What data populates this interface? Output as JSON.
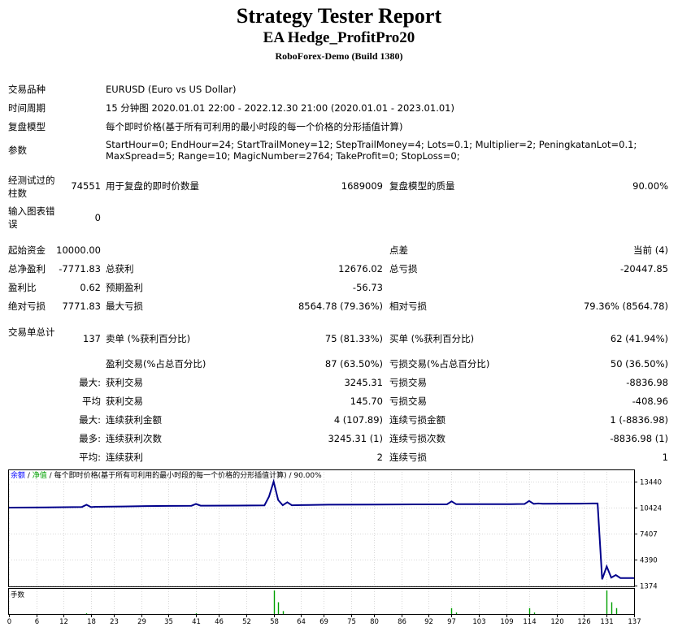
{
  "header": {
    "title": "Strategy Tester Report",
    "subtitle": "EA Hedge_ProfitPro20",
    "build": "RoboForex-Demo (Build 1380)"
  },
  "info": {
    "symbol_label": "交易品种",
    "symbol_value": "EURUSD (Euro vs US Dollar)",
    "period_label": "时间周期",
    "period_value": "15 分钟图 2020.01.01 22:00 - 2022.12.30 21:00 (2020.01.01 - 2023.01.01)",
    "model_label": "复盘模型",
    "model_value": "每个即时价格(基于所有可利用的最小时段的每一个价格的分形插值计算)",
    "params_label": "参数",
    "params_value": "StartHour=0; EndHour=24; StartTrailMoney=12; StepTrailMoney=4; Lots=0.1; Multiplier=2; PeningkatanLot=0.1; MaxSpread=5; Range=10; MagicNumber=2764; TakeProfit=0; StopLoss=0;"
  },
  "bars": {
    "label": "经测试过的柱数",
    "value": "74551",
    "ticks_label": "用于复盘的即时价数量",
    "ticks_value": "1689009",
    "quality_label": "复盘模型的质量",
    "quality_value": "90.00%"
  },
  "errors": {
    "label": "输入图表错误",
    "value": "0"
  },
  "stats": {
    "initial_deposit_label": "起始资金",
    "initial_deposit": "10000.00",
    "spread_label": "点差",
    "spread": "当前 (4)",
    "net_profit_label": "总净盈利",
    "net_profit": "-7771.83",
    "gross_profit_label": "总获利",
    "gross_profit": "12676.02",
    "gross_loss_label": "总亏损",
    "gross_loss": "-20447.85",
    "profit_factor_label": "盈利比",
    "profit_factor": "0.62",
    "expected_payoff_label": "预期盈利",
    "expected_payoff": "-56.73",
    "abs_drawdown_label": "绝对亏损",
    "abs_drawdown": "7771.83",
    "max_drawdown_label": "最大亏损",
    "max_drawdown": "8564.78 (79.36%)",
    "rel_drawdown_label": "相对亏损",
    "rel_drawdown": "79.36% (8564.78)",
    "total_trades_label": "交易单总计",
    "total_trades": "137",
    "short_label": "卖单 (%获利百分比)",
    "short": "75 (81.33%)",
    "long_label": "买单 (%获利百分比)",
    "long": "62 (41.94%)",
    "profit_trades_label": "盈利交易(%占总百分比)",
    "profit_trades": "87 (63.50%)",
    "loss_trades_label": "亏损交易(%占总百分比)",
    "loss_trades": "50 (36.50%)",
    "largest_prefix": "最大:",
    "largest_profit_label": "获利交易",
    "largest_profit": "3245.31",
    "largest_loss_label": "亏损交易",
    "largest_loss": "-8836.98",
    "average_prefix": "平均",
    "average_profit_label": "获利交易",
    "average_profit": "145.70",
    "average_loss_label": "亏损交易",
    "average_loss": "-408.96",
    "max_consec_prefix": "最大:",
    "max_consec_wins_label": "连续获利金额",
    "max_consec_wins": "4 (107.89)",
    "max_consec_losses_label": "连续亏损金额",
    "max_consec_losses": "1 (-8836.98)",
    "maximal_prefix": "最多:",
    "maximal_consec_profit_label": "连续获利次数",
    "maximal_consec_profit": "3245.31 (1)",
    "maximal_consec_loss_label": "连续亏损次数",
    "maximal_consec_loss": "-8836.98 (1)",
    "avg_consec_prefix": "平均:",
    "avg_consec_wins_label": "连续获利",
    "avg_consec_wins": "2",
    "avg_consec_losses_label": "连续亏损",
    "avg_consec_losses": "1"
  },
  "chart_data": {
    "type": "line",
    "legend": {
      "balance": "余额",
      "sep1": " / ",
      "equity": "净值",
      "sep2": " / ",
      "model": "每个即时价格(基于所有可利用的最小时段的每一个价格的分形插值计算)",
      "sep3": " / ",
      "quality": "90.00%"
    },
    "lots_label": "手数",
    "colors": {
      "balance": "#00008b",
      "equity": "#00a000",
      "lots": "#00a000"
    },
    "y_ticks": [
      13440,
      10424,
      7407,
      4390,
      1374
    ],
    "ylim": [
      1374,
      13440
    ],
    "x_ticks": [
      0,
      6,
      12,
      18,
      23,
      29,
      35,
      41,
      46,
      52,
      58,
      64,
      69,
      75,
      80,
      86,
      92,
      97,
      103,
      109,
      114,
      120,
      126,
      131,
      137
    ],
    "xlim": [
      0,
      137
    ],
    "series": [
      {
        "name": "余额",
        "x": [
          0,
          8,
          16,
          17,
          18,
          19,
          25,
          30,
          35,
          40,
          41,
          42,
          50,
          56,
          57,
          58,
          59,
          60,
          61,
          62,
          64,
          70,
          80,
          90,
          96,
          97,
          98,
          110,
          113,
          114,
          115,
          116,
          117,
          125,
          128,
          129,
          130,
          131,
          132,
          133,
          134,
          135,
          137
        ],
        "values": [
          10424,
          10450,
          10500,
          10750,
          10480,
          10520,
          10560,
          10600,
          10620,
          10640,
          10850,
          10650,
          10660,
          10690,
          11700,
          13440,
          11300,
          10700,
          11050,
          10700,
          10720,
          10760,
          10780,
          10800,
          10810,
          11150,
          10820,
          10830,
          10850,
          11200,
          10860,
          10900,
          10880,
          10890,
          10900,
          10900,
          2100,
          3600,
          2300,
          2600,
          2250,
          2250,
          2250
        ]
      }
    ],
    "lots": {
      "x": [
        17,
        41,
        58,
        59,
        60,
        97,
        98,
        114,
        115,
        131,
        132,
        133
      ],
      "values": [
        0.1,
        0.1,
        3.2,
        1.6,
        0.4,
        0.8,
        0.2,
        0.8,
        0.2,
        3.2,
        1.6,
        0.8
      ]
    }
  }
}
